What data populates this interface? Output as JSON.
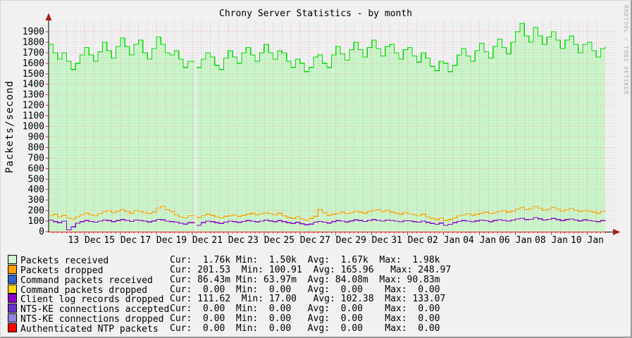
{
  "watermark": "RRDTOOL / TOBI OETIKER",
  "chart_data": {
    "type": "area",
    "title": "Chrony Server Statistics - by month",
    "ylabel": "Packets/second",
    "ylim": [
      0,
      2000
    ],
    "y_major_step": 100,
    "x_start": "11 Dec 00:00",
    "x_end": "11 Jan 00:00",
    "point_interval_hours": 6,
    "gap_at": "19 Dec 00:00",
    "grid": "red-dotted-major, gray-dotted-minor",
    "legend_position": "bottom",
    "x_ticks": [
      {
        "d": 2,
        "label": "13 Dec"
      },
      {
        "d": 4,
        "label": "15 Dec"
      },
      {
        "d": 6,
        "label": "17 Dec"
      },
      {
        "d": 8,
        "label": "19 Dec"
      },
      {
        "d": 10,
        "label": "21 Dec"
      },
      {
        "d": 12,
        "label": "23 Dec"
      },
      {
        "d": 14,
        "label": "25 Dec"
      },
      {
        "d": 16,
        "label": "27 Dec"
      },
      {
        "d": 18,
        "label": "29 Dec"
      },
      {
        "d": 20,
        "label": "31 Dec"
      },
      {
        "d": 22,
        "label": "02 Jan"
      },
      {
        "d": 24,
        "label": "04 Jan"
      },
      {
        "d": 26,
        "label": "06 Jan"
      },
      {
        "d": 28,
        "label": "08 Jan"
      },
      {
        "d": 30,
        "label": "10 Jan"
      }
    ],
    "series": [
      {
        "name": "Packets received",
        "style": "area",
        "fill": "#CCF5CC",
        "color": "#00DB00",
        "values": [
          1780,
          1700,
          1640,
          1700,
          1620,
          1540,
          1600,
          1680,
          1750,
          1680,
          1620,
          1710,
          1800,
          1720,
          1650,
          1760,
          1840,
          1760,
          1680,
          1780,
          1820,
          1700,
          1640,
          1740,
          1850,
          1780,
          1700,
          1680,
          1720,
          1640,
          1560,
          1620,
          null,
          1560,
          1640,
          1700,
          1660,
          1580,
          1540,
          1650,
          1720,
          1660,
          1600,
          1700,
          1750,
          1680,
          1620,
          1700,
          1780,
          1700,
          1640,
          1720,
          1700,
          1620,
          1560,
          1640,
          1600,
          1520,
          1560,
          1660,
          1680,
          1600,
          1560,
          1680,
          1760,
          1690,
          1630,
          1730,
          1800,
          1730,
          1660,
          1750,
          1820,
          1740,
          1670,
          1760,
          1780,
          1700,
          1640,
          1730,
          1750,
          1670,
          1610,
          1700,
          1650,
          1570,
          1530,
          1620,
          1600,
          1520,
          1580,
          1680,
          1740,
          1670,
          1620,
          1720,
          1790,
          1710,
          1650,
          1760,
          1830,
          1750,
          1690,
          1800,
          1900,
          1980,
          1860,
          1800,
          1940,
          1860,
          1780,
          1850,
          1900,
          1820,
          1740,
          1820,
          1860,
          1780,
          1700,
          1780,
          1800,
          1720,
          1660,
          1740,
          1760
        ]
      },
      {
        "name": "Packets dropped",
        "style": "line",
        "color": "#FFA000",
        "values": [
          150,
          165,
          140,
          155,
          130,
          120,
          140,
          160,
          175,
          160,
          150,
          170,
          190,
          200,
          180,
          195,
          210,
          190,
          175,
          200,
          195,
          180,
          170,
          185,
          225,
          240,
          210,
          190,
          160,
          140,
          130,
          150,
          null,
          135,
          150,
          165,
          155,
          140,
          130,
          145,
          150,
          160,
          145,
          155,
          165,
          175,
          160,
          170,
          180,
          170,
          160,
          175,
          150,
          135,
          125,
          140,
          120,
          110,
          125,
          145,
          210,
          180,
          155,
          165,
          170,
          185,
          170,
          180,
          195,
          185,
          175,
          190,
          200,
          210,
          190,
          205,
          185,
          175,
          165,
          180,
          170,
          160,
          150,
          165,
          140,
          125,
          115,
          130,
          105,
          115,
          130,
          150,
          160,
          170,
          155,
          165,
          175,
          185,
          170,
          180,
          190,
          200,
          185,
          195,
          215,
          230,
          210,
          220,
          240,
          225,
          205,
          215,
          230,
          215,
          195,
          210,
          220,
          205,
          190,
          200,
          195,
          185,
          175,
          190,
          200
        ]
      },
      {
        "name": "Command packets received",
        "style": "line",
        "color": "#3264C8",
        "constant": 0.086
      },
      {
        "name": "Command packets dropped",
        "style": "line",
        "color": "#FFD300",
        "constant": 0
      },
      {
        "name": "Client log records dropped",
        "style": "line",
        "color": "#8A00C8",
        "values": [
          110,
          95,
          85,
          100,
          17,
          45,
          80,
          95,
          105,
          98,
          90,
          100,
          110,
          105,
          95,
          105,
          115,
          108,
          98,
          110,
          108,
          100,
          92,
          102,
          118,
          112,
          100,
          95,
          90,
          80,
          72,
          85,
          null,
          60,
          85,
          100,
          95,
          85,
          78,
          90,
          100,
          95,
          88,
          98,
          105,
          100,
          92,
          100,
          110,
          102,
          95,
          105,
          95,
          85,
          78,
          88,
          75,
          65,
          72,
          90,
          98,
          90,
          82,
          95,
          105,
          100,
          92,
          102,
          112,
          105,
          98,
          108,
          115,
          108,
          100,
          110,
          108,
          100,
          94,
          104,
          103,
          96,
          90,
          100,
          88,
          78,
          70,
          82,
          60,
          70,
          85,
          98,
          105,
          100,
          93,
          102,
          110,
          104,
          96,
          106,
          114,
          108,
          100,
          110,
          120,
          128,
          115,
          118,
          133,
          122,
          110,
          118,
          125,
          115,
          105,
          115,
          120,
          110,
          102,
          112,
          108,
          100,
          95,
          105,
          110
        ]
      },
      {
        "name": "NTS-KE connections accepted",
        "style": "line",
        "color": "#6633CC",
        "constant": 0
      },
      {
        "name": "NTS-KE connections dropped",
        "style": "line",
        "color": "#9682DC",
        "constant": 0
      },
      {
        "name": "Authenticated NTP packets",
        "style": "line",
        "color": "#FF0000",
        "constant": 0
      }
    ]
  },
  "legend": {
    "rows": [
      {
        "color": "#CCF5CC",
        "label": "Packets received",
        "stats": "Cur:  1.76k Min:  1.50k  Avg:  1.67k  Max:  1.98k",
        "cur": "1.76k",
        "min": "1.50k",
        "avg": "1.67k",
        "max": "1.98k"
      },
      {
        "color": "#FFA000",
        "label": "Packets dropped",
        "stats": "Cur: 201.53  Min: 100.91  Avg: 165.96   Max: 248.97",
        "cur": "201.53",
        "min": "100.91",
        "avg": "165.96",
        "max": "248.97"
      },
      {
        "color": "#3264C8",
        "label": "Command packets received",
        "stats": "Cur: 86.43m Min: 63.97m  Avg: 84.08m  Max: 90.83m",
        "cur": "86.43m",
        "min": "63.97m",
        "avg": "84.08m",
        "max": "90.83m"
      },
      {
        "color": "#FFD300",
        "label": "Command packets dropped",
        "stats": "Cur:  0.00  Min:  0.00   Avg:  0.00    Max:  0.00",
        "cur": "0.00",
        "min": "0.00",
        "avg": "0.00",
        "max": "0.00"
      },
      {
        "color": "#8A00C8",
        "label": "Client log records dropped",
        "stats": "Cur: 111.62  Min: 17.00   Avg: 102.38  Max: 133.07",
        "cur": "111.62",
        "min": "17.00",
        "avg": "102.38",
        "max": "133.07"
      },
      {
        "color": "#6633CC",
        "label": "NTS-KE connections accepted",
        "stats": "Cur:  0.00  Min:  0.00   Avg:  0.00    Max:  0.00",
        "cur": "0.00",
        "min": "0.00",
        "avg": "0.00",
        "max": "0.00"
      },
      {
        "color": "#9682DC",
        "label": "NTS-KE connections dropped",
        "stats": "Cur:  0.00  Min:  0.00   Avg:  0.00    Max:  0.00",
        "cur": "0.00",
        "min": "0.00",
        "avg": "0.00",
        "max": "0.00"
      },
      {
        "color": "#FF0000",
        "label": "Authenticated NTP packets",
        "stats": "Cur:  0.00  Min:  0.00   Avg:  0.00    Max:  0.00",
        "cur": "0.00",
        "min": "0.00",
        "avg": "0.00",
        "max": "0.00"
      }
    ]
  }
}
